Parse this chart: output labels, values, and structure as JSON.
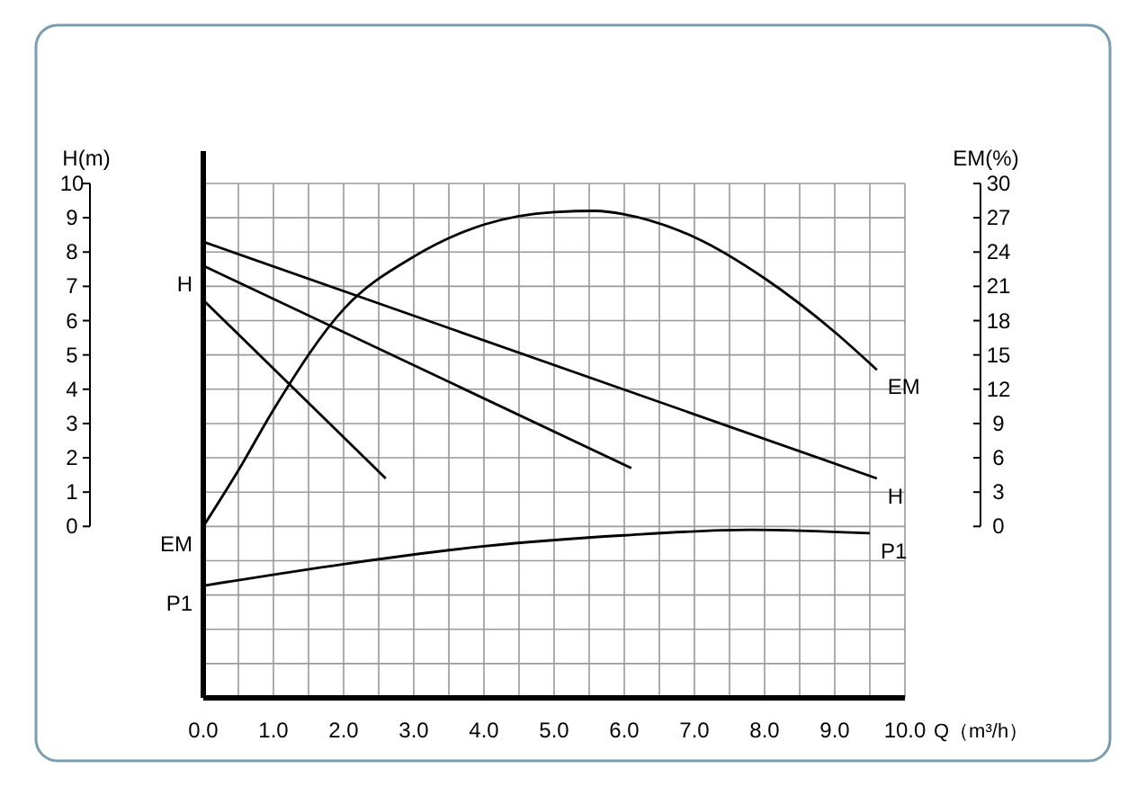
{
  "chart_data": {
    "type": "line",
    "xlabel": "Q（m³/h）",
    "ylabel": "H(m)",
    "y2label": "EM(%)",
    "xlim": [
      0,
      10
    ],
    "ylim": [
      -5,
      10
    ],
    "y2lim": [
      0,
      30
    ],
    "xticks": [
      {
        "value": 0,
        "label": "0.0"
      },
      {
        "value": 0.5,
        "label": null
      },
      {
        "value": 1,
        "label": "1.0"
      },
      {
        "value": 1.5,
        "label": null
      },
      {
        "value": 2,
        "label": "2.0"
      },
      {
        "value": 2.5,
        "label": null
      },
      {
        "value": 3,
        "label": "3.0"
      },
      {
        "value": 3.5,
        "label": null
      },
      {
        "value": 4,
        "label": "4.0"
      },
      {
        "value": 4.5,
        "label": null
      },
      {
        "value": 5,
        "label": "5.0"
      },
      {
        "value": 5.5,
        "label": null
      },
      {
        "value": 6,
        "label": "6.0"
      },
      {
        "value": 6.5,
        "label": null
      },
      {
        "value": 7,
        "label": "7.0"
      },
      {
        "value": 7.5,
        "label": null
      },
      {
        "value": 8,
        "label": "8.0"
      },
      {
        "value": 8.5,
        "label": null
      },
      {
        "value": 9,
        "label": "9.0"
      },
      {
        "value": 9.5,
        "label": null
      },
      {
        "value": 10,
        "label": "10.0"
      }
    ],
    "yticks": [
      {
        "value": -5,
        "label": null
      },
      {
        "value": -4,
        "label": null
      },
      {
        "value": -3,
        "label": null
      },
      {
        "value": -2,
        "label": null
      },
      {
        "value": -1,
        "label": null
      },
      0,
      1,
      2,
      3,
      4,
      5,
      6,
      7,
      8,
      9,
      10
    ],
    "y2ticks": [
      0,
      3,
      6,
      9,
      12,
      15,
      18,
      21,
      24,
      27,
      30
    ],
    "grid": true,
    "marker": "none",
    "line_style": "solid",
    "series": [
      {
        "color": "#000000",
        "x": [
          0,
          9.6
        ],
        "values": [
          8.3,
          1.4
        ]
      },
      {
        "color": "#000000",
        "x": [
          0,
          6.1
        ],
        "values": [
          7.6,
          1.7
        ]
      },
      {
        "color": "#000000",
        "x": [
          0,
          2.6
        ],
        "values": [
          6.6,
          1.4
        ]
      },
      {
        "axis": "y2",
        "color": "#000000",
        "x": [
          0,
          0.5,
          1,
          2,
          3,
          4,
          5,
          5.6,
          6,
          7,
          8,
          9,
          9.6
        ],
        "values": [
          0,
          4.9,
          10.2,
          19,
          23.6,
          26.4,
          27.5,
          27.6,
          27.3,
          25.3,
          21.7,
          17,
          13.7
        ]
      },
      {
        "color": "#000000",
        "x": [
          0,
          2,
          4,
          6,
          7.8,
          9.5
        ],
        "values": [
          -1.73,
          -1.1,
          -0.58,
          -0.26,
          -0.1,
          -0.2
        ]
      }
    ],
    "annotations": [
      {
        "text": "H",
        "x": 0,
        "y": 7.6
      },
      {
        "text": "H",
        "x": 9.6,
        "y": 1.4
      },
      {
        "text": "EM",
        "x": 0,
        "y": 0
      },
      {
        "text": "EM",
        "x": 9.6,
        "y": 4.6
      },
      {
        "text": "P1",
        "x": 0,
        "y": -1.73
      },
      {
        "text": "P1",
        "x": 9.5,
        "y": -0.2
      }
    ]
  }
}
